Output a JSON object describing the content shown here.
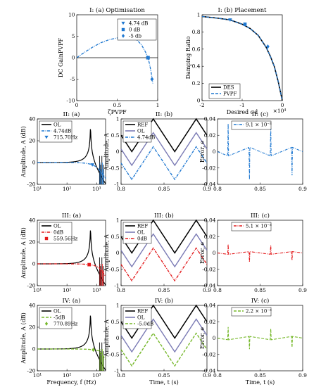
{
  "colors": {
    "ref": "#000000",
    "ol_time": "#7b7bb5",
    "blue": "#1f78d1",
    "red": "#e31a1c",
    "green": "#76b82a"
  },
  "chart_data": [
    {
      "type": "line",
      "title": "I: (a) Optimisation",
      "xlabel": "ζPVPF",
      "ylabel": "DC GainPVPF",
      "xlim": [
        0,
        1
      ],
      "ylim": [
        -10,
        10
      ],
      "xticks": [
        "0",
        "0.5",
        "1"
      ],
      "yticks": [
        "10",
        "5",
        "0",
        "-5",
        "-10"
      ],
      "series": [
        {
          "x": [
            0,
            0.1,
            0.2,
            0.3,
            0.4,
            0.5,
            0.6,
            0.65,
            0.7,
            0.75,
            0.8,
            0.85,
            0.88,
            0.9,
            0.92,
            0.94
          ],
          "y": [
            0,
            1.3,
            2.5,
            3.5,
            4.2,
            4.6,
            4.75,
            4.7,
            4.5,
            4.0,
            3.0,
            1.3,
            0,
            -1.5,
            -3.5,
            -6
          ]
        }
      ],
      "markers": [
        {
          "name": "4.74 dB",
          "x": 0.65,
          "y": 4.74,
          "shape": "triangle"
        },
        {
          "name": "0 dB",
          "x": 0.88,
          "y": 0,
          "shape": "square"
        },
        {
          "name": "-5 db",
          "x": 0.93,
          "y": -5,
          "shape": "diamond"
        }
      ]
    },
    {
      "type": "line",
      "title": "I: (b) Placement",
      "xlabel": "Desired σd",
      "ylabel": "Damping Ratio",
      "xlim": [
        -20000,
        0
      ],
      "ylim": [
        0,
        1
      ],
      "xticks": [
        "-2",
        "-1",
        "0"
      ],
      "xexp": "×10⁴",
      "yticks": [
        "1",
        "0.8",
        "0.6",
        "0.4",
        "0.2",
        "0"
      ],
      "series": [
        {
          "name": "DES",
          "x": [
            -20000,
            -16000,
            -13000,
            -10000,
            -8000,
            -6000,
            -4000,
            -3000,
            -2000,
            -1000,
            -500,
            0
          ],
          "y": [
            0.98,
            0.96,
            0.94,
            0.89,
            0.84,
            0.76,
            0.62,
            0.52,
            0.4,
            0.22,
            0.11,
            0
          ]
        },
        {
          "name": "PVPF",
          "x": [
            -20000,
            -16000,
            -13000,
            -10000,
            -8000,
            -6000,
            -4000,
            -3000,
            -2000,
            -1000,
            -500,
            0
          ],
          "y": [
            0.98,
            0.96,
            0.94,
            0.89,
            0.84,
            0.76,
            0.62,
            0.52,
            0.4,
            0.22,
            0.11,
            0
          ]
        }
      ],
      "markers": [
        {
          "x": -13000,
          "y": 0.94,
          "shape": "triangle"
        },
        {
          "x": -9300,
          "y": 0.89,
          "shape": "square"
        },
        {
          "x": -3600,
          "y": 0.63,
          "shape": "diamond"
        }
      ]
    },
    {
      "type": "line",
      "title": "II: (a)",
      "ylabel": "Amplitude, A (dB)",
      "xscale": "log",
      "xlim": [
        10,
        2000
      ],
      "ylim": [
        -20,
        40
      ],
      "xticks": [
        "10¹",
        "10²",
        "10³"
      ],
      "yticks": [
        "40",
        "20",
        "0",
        "-20"
      ],
      "series": [
        {
          "name": "OL"
        },
        {
          "name": "4.74dB"
        }
      ],
      "marker_label": "715.70Hz"
    },
    {
      "type": "line",
      "title": "II: (b)",
      "ylabel": "Amplitude, A",
      "xlim": [
        0.8,
        0.9
      ],
      "ylim": [
        -1,
        1
      ],
      "xticks": [
        "0.8",
        "0.85",
        "0.9"
      ],
      "yticks": [
        "1",
        "0.5",
        "0",
        "-0.5",
        "-1"
      ],
      "series": [
        {
          "name": "REF"
        },
        {
          "name": "OL"
        },
        {
          "name": "4.74dB"
        }
      ]
    },
    {
      "type": "line",
      "title": "II: (c)",
      "ylabel": "Error, e",
      "xlim": [
        0.8,
        0.9
      ],
      "ylim": [
        -0.04,
        0.04
      ],
      "xticks": [
        "0.8",
        "0.85",
        "0.9"
      ],
      "yticks": [
        "0.04",
        "0.02",
        "0",
        "-0.02",
        "-0.04"
      ],
      "series": [
        {
          "name": "9.1 × 10⁻³"
        }
      ]
    },
    {
      "type": "line",
      "title": "III: (a)",
      "ylabel": "Amplitude, A (dB)",
      "xscale": "log",
      "xlim": [
        10,
        2000
      ],
      "ylim": [
        -20,
        40
      ],
      "xticks": [
        "10¹",
        "10²",
        "10³"
      ],
      "yticks": [
        "40",
        "20",
        "0",
        "-20"
      ],
      "series": [
        {
          "name": "OL"
        },
        {
          "name": "0dB"
        }
      ],
      "marker_label": "559.56Hz"
    },
    {
      "type": "line",
      "title": "III: (b)",
      "ylabel": "Amplitude, A",
      "xlim": [
        0.8,
        0.9
      ],
      "ylim": [
        -1,
        1
      ],
      "xticks": [
        "0.8",
        "0.85",
        "0.9"
      ],
      "yticks": [
        "1",
        "0.5",
        "0",
        "-0.5",
        "-1"
      ],
      "series": [
        {
          "name": "REF"
        },
        {
          "name": "OL"
        },
        {
          "name": "0dB"
        }
      ]
    },
    {
      "type": "line",
      "title": "III: (c)",
      "ylabel": "Error, e",
      "xlim": [
        0.8,
        0.9
      ],
      "ylim": [
        -0.04,
        0.04
      ],
      "xticks": [
        "0.8",
        "0.85",
        "0.9"
      ],
      "yticks": [
        "0.04",
        "0.02",
        "0",
        "-0.02",
        "-0.04"
      ],
      "series": [
        {
          "name": "5.1 × 10⁻³"
        }
      ]
    },
    {
      "type": "line",
      "title": "IV: (a)",
      "ylabel": "Amplitude, A (dB)",
      "xlabel": "Frequency, f (Hz)",
      "xscale": "log",
      "xlim": [
        10,
        2000
      ],
      "ylim": [
        -20,
        40
      ],
      "xticks": [
        "10¹",
        "10²",
        "10³"
      ],
      "yticks": [
        "40",
        "20",
        "0",
        "-20"
      ],
      "series": [
        {
          "name": "OL"
        },
        {
          "name": "-5dB"
        }
      ],
      "marker_label": "770.89Hz"
    },
    {
      "type": "line",
      "title": "IV: (b)",
      "ylabel": "Amplitude, A",
      "xlabel": "Time, t (s)",
      "xlim": [
        0.8,
        0.9
      ],
      "ylim": [
        -1,
        1
      ],
      "xticks": [
        "0.8",
        "0.85",
        "0.9"
      ],
      "yticks": [
        "1",
        "0.5",
        "0",
        "-0.5",
        "-1"
      ],
      "series": [
        {
          "name": "REF"
        },
        {
          "name": "OL"
        },
        {
          "name": "-5.0dB"
        }
      ]
    },
    {
      "type": "line",
      "title": "IV: (c)",
      "ylabel": "Error, e",
      "xlabel": "Time, t (s)",
      "xlim": [
        0.8,
        0.9
      ],
      "ylim": [
        -0.04,
        0.04
      ],
      "xticks": [
        "0.8",
        "0.85",
        "0.9"
      ],
      "yticks": [
        "0.04",
        "0.02",
        "0",
        "-0.02",
        "-0.04"
      ],
      "series": [
        {
          "name": "2.2 × 10⁻³"
        }
      ]
    }
  ]
}
